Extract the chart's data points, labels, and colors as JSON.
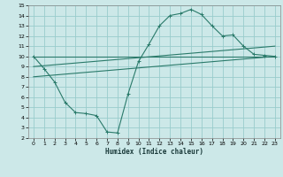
{
  "xlabel": "Humidex (Indice chaleur)",
  "bg_color": "#cce8e8",
  "grid_color": "#99cccc",
  "line_color": "#2a7a6a",
  "xlim": [
    -0.5,
    23.5
  ],
  "ylim": [
    2,
    15
  ],
  "xticks": [
    0,
    1,
    2,
    3,
    4,
    5,
    6,
    7,
    8,
    9,
    10,
    11,
    12,
    13,
    14,
    15,
    16,
    17,
    18,
    19,
    20,
    21,
    22,
    23
  ],
  "yticks": [
    2,
    3,
    4,
    5,
    6,
    7,
    8,
    9,
    10,
    11,
    12,
    13,
    14,
    15
  ],
  "line1_x": [
    0,
    1,
    2,
    3,
    4,
    5,
    6,
    7,
    8,
    9,
    10,
    11,
    12,
    13,
    14,
    15,
    16,
    17,
    18,
    19,
    20,
    21,
    22,
    23
  ],
  "line1_y": [
    10,
    8.8,
    7.5,
    5.5,
    4.5,
    4.4,
    4.2,
    2.6,
    2.5,
    6.3,
    9.5,
    11.2,
    13.0,
    14.0,
    14.2,
    14.6,
    14.1,
    13.0,
    12.0,
    12.1,
    11.0,
    10.2,
    10.1,
    10.0
  ],
  "line2_x": [
    0,
    23
  ],
  "line2_y": [
    10,
    10
  ],
  "line3_x": [
    0,
    23
  ],
  "line3_y": [
    9.0,
    11.0
  ],
  "line4_x": [
    0,
    23
  ],
  "line4_y": [
    8.0,
    10.0
  ]
}
